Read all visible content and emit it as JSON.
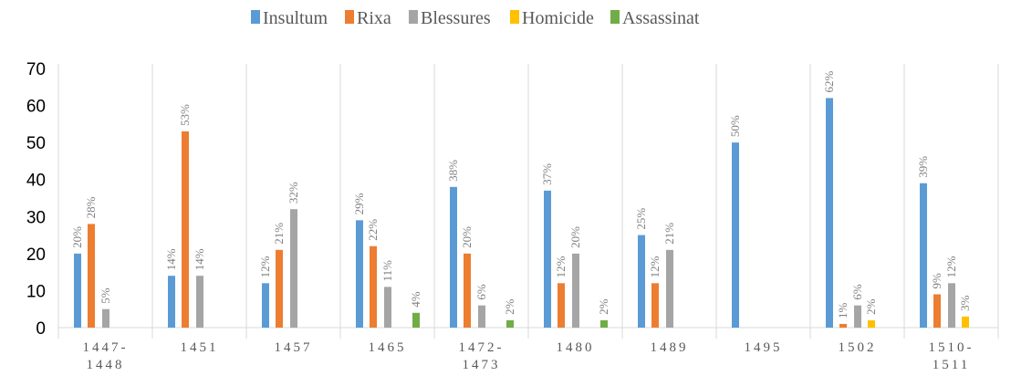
{
  "chart_data": {
    "type": "bar",
    "categories": [
      [
        "1447-",
        "1448"
      ],
      [
        "1451"
      ],
      [
        "1457"
      ],
      [
        "1465"
      ],
      [
        "1472-",
        "1473"
      ],
      [
        "1480"
      ],
      [
        "1489"
      ],
      [
        "1495"
      ],
      [
        "1502"
      ],
      [
        "1510-",
        "1511"
      ]
    ],
    "ylim": [
      0,
      70
    ],
    "yticks": [
      0,
      10,
      20,
      30,
      40,
      50,
      60,
      70
    ],
    "legend_position": "top",
    "grid": "vertical category separators",
    "series": [
      {
        "name": "Insultum",
        "color": "#5b9bd5",
        "values": [
          20,
          14,
          12,
          29,
          38,
          37,
          25,
          50,
          62,
          39
        ],
        "labels": [
          "20%",
          "14%",
          "12%",
          "29%",
          "38%",
          "37%",
          "25%",
          "50%",
          "62%",
          "39%"
        ]
      },
      {
        "name": "Rixa",
        "color": "#ed7d31",
        "values": [
          28,
          53,
          21,
          22,
          20,
          12,
          12,
          0,
          1,
          9
        ],
        "labels": [
          "28%",
          "53%",
          "21%",
          "22%",
          "20%",
          "12%",
          "12%",
          null,
          "1%",
          "9%"
        ]
      },
      {
        "name": "Blessures",
        "color": "#a5a5a5",
        "values": [
          5,
          14,
          32,
          11,
          6,
          20,
          21,
          0,
          6,
          12
        ],
        "labels": [
          "5%",
          "14%",
          "32%",
          "11%",
          "6%",
          "20%",
          "21%",
          null,
          "6%",
          "12%"
        ]
      },
      {
        "name": "Homicide",
        "color": "#ffc000",
        "values": [
          0,
          0,
          0,
          0,
          0,
          0,
          0,
          0,
          2,
          3
        ],
        "labels": [
          null,
          null,
          null,
          null,
          null,
          null,
          null,
          null,
          "2%",
          "3%"
        ]
      },
      {
        "name": "Assassinat",
        "color": "#70ad47",
        "values": [
          0,
          0,
          0,
          4,
          2,
          2,
          0,
          0,
          0,
          0
        ],
        "labels": [
          null,
          null,
          null,
          "4%",
          "2%",
          "2%",
          null,
          null,
          null,
          null
        ]
      }
    ]
  }
}
